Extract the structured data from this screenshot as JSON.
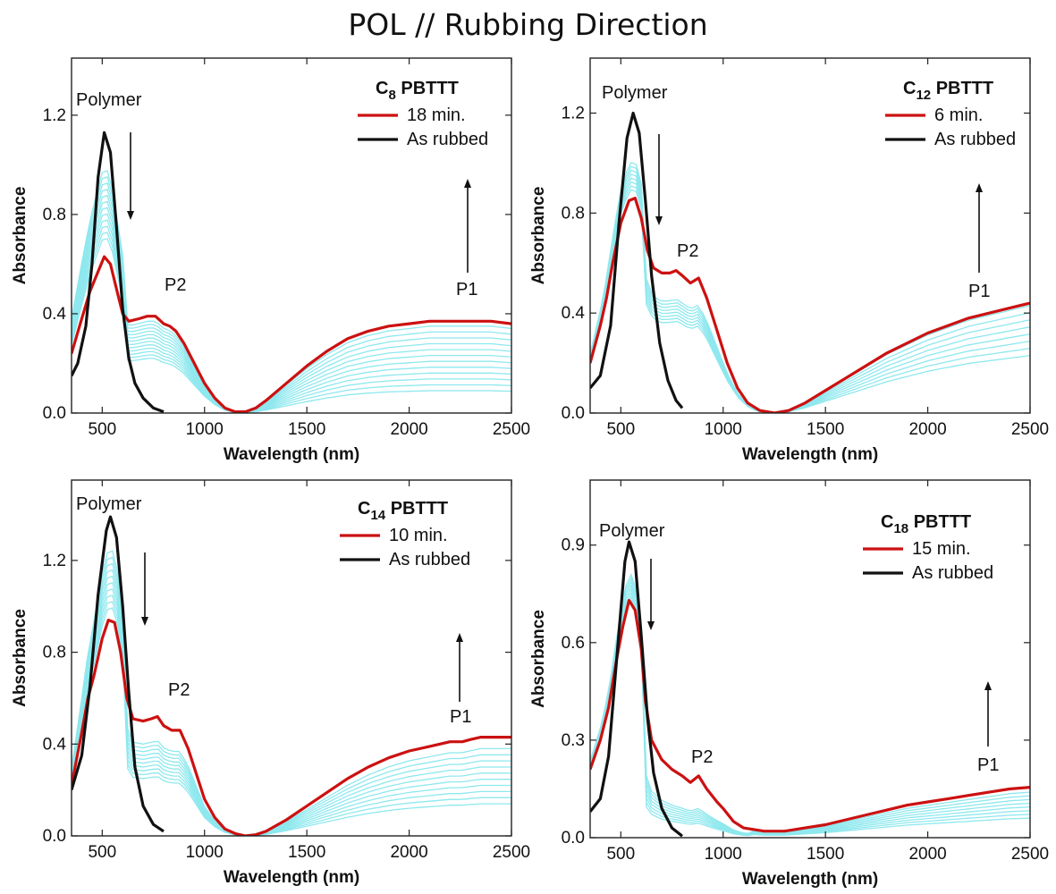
{
  "title": "POL // Rubbing Direction",
  "colors": {
    "treated": "#cc1111",
    "rubbed": "#111111",
    "intermediate": "#8ee8ee",
    "frame": "#222222"
  },
  "chart_data": [
    {
      "type": "line",
      "legend_title_main": "C",
      "legend_title_sub": "8",
      "legend_title_rest": " PBTTT",
      "xlabel": "Wavelength (nm)",
      "ylabel": "Absorbance",
      "xlim": [
        350,
        2500
      ],
      "ylim": [
        0,
        1.43
      ],
      "xticks": [
        500,
        1000,
        1500,
        2000,
        2500
      ],
      "yticks": [
        0.0,
        0.4,
        0.8,
        1.2
      ],
      "ytick_labels": [
        "0.0",
        "0.4",
        "0.8",
        "1.2"
      ],
      "annotations": {
        "polymer": "Polymer",
        "p2": "P2",
        "p1": "P1"
      },
      "legend_position": "top-right",
      "series": [
        {
          "name": "18  min.",
          "role": "treated",
          "points": [
            [
              350,
              0.24
            ],
            [
              400,
              0.38
            ],
            [
              440,
              0.49
            ],
            [
              480,
              0.57
            ],
            [
              510,
              0.63
            ],
            [
              540,
              0.6
            ],
            [
              570,
              0.5
            ],
            [
              600,
              0.4
            ],
            [
              630,
              0.37
            ],
            [
              680,
              0.38
            ],
            [
              720,
              0.39
            ],
            [
              760,
              0.39
            ],
            [
              800,
              0.36
            ],
            [
              830,
              0.35
            ],
            [
              860,
              0.33
            ],
            [
              900,
              0.28
            ],
            [
              950,
              0.2
            ],
            [
              1000,
              0.12
            ],
            [
              1050,
              0.06
            ],
            [
              1100,
              0.02
            ],
            [
              1150,
              0.005
            ],
            [
              1200,
              0.005
            ],
            [
              1250,
              0.02
            ],
            [
              1300,
              0.05
            ],
            [
              1400,
              0.12
            ],
            [
              1500,
              0.19
            ],
            [
              1600,
              0.25
            ],
            [
              1700,
              0.3
            ],
            [
              1800,
              0.33
            ],
            [
              1900,
              0.35
            ],
            [
              2000,
              0.36
            ],
            [
              2100,
              0.37
            ],
            [
              2200,
              0.37
            ],
            [
              2300,
              0.37
            ],
            [
              2400,
              0.37
            ],
            [
              2500,
              0.36
            ]
          ]
        },
        {
          "name": "As rubbed",
          "role": "rubbed",
          "points": [
            [
              350,
              0.15
            ],
            [
              380,
              0.2
            ],
            [
              420,
              0.35
            ],
            [
              450,
              0.6
            ],
            [
              480,
              0.95
            ],
            [
              510,
              1.13
            ],
            [
              540,
              1.05
            ],
            [
              570,
              0.75
            ],
            [
              600,
              0.42
            ],
            [
              630,
              0.22
            ],
            [
              660,
              0.12
            ],
            [
              700,
              0.06
            ],
            [
              750,
              0.02
            ],
            [
              800,
              0.005
            ]
          ]
        }
      ],
      "intermediate": {
        "count": 12,
        "peak": [
          0.72,
          1.0
        ],
        "p2": [
          0.22,
          0.37
        ],
        "p1": [
          0.09,
          0.35
        ]
      }
    },
    {
      "type": "line",
      "legend_title_main": "C",
      "legend_title_sub": "12",
      "legend_title_rest": " PBTTT",
      "xlabel": "Wavelength (nm)",
      "ylabel": "Absorbance",
      "xlim": [
        350,
        2500
      ],
      "ylim": [
        0,
        1.42
      ],
      "xticks": [
        500,
        1000,
        1500,
        2000,
        2500
      ],
      "yticks": [
        0.0,
        0.4,
        0.8,
        1.2
      ],
      "ytick_labels": [
        "0.0",
        "0.4",
        "0.8",
        "1.2"
      ],
      "annotations": {
        "polymer": "Polymer",
        "p2": "P2",
        "p1": "P1"
      },
      "legend_position": "top-right",
      "series": [
        {
          "name": "6   min.",
          "role": "treated",
          "points": [
            [
              350,
              0.2
            ],
            [
              400,
              0.35
            ],
            [
              430,
              0.46
            ],
            [
              460,
              0.6
            ],
            [
              500,
              0.76
            ],
            [
              540,
              0.85
            ],
            [
              570,
              0.86
            ],
            [
              600,
              0.78
            ],
            [
              630,
              0.65
            ],
            [
              660,
              0.58
            ],
            [
              700,
              0.56
            ],
            [
              740,
              0.56
            ],
            [
              770,
              0.57
            ],
            [
              800,
              0.55
            ],
            [
              840,
              0.52
            ],
            [
              880,
              0.54
            ],
            [
              920,
              0.46
            ],
            [
              970,
              0.33
            ],
            [
              1020,
              0.2
            ],
            [
              1070,
              0.1
            ],
            [
              1120,
              0.04
            ],
            [
              1180,
              0.01
            ],
            [
              1250,
              0.0
            ],
            [
              1320,
              0.01
            ],
            [
              1400,
              0.04
            ],
            [
              1500,
              0.09
            ],
            [
              1600,
              0.14
            ],
            [
              1700,
              0.19
            ],
            [
              1800,
              0.24
            ],
            [
              1900,
              0.28
            ],
            [
              2000,
              0.32
            ],
            [
              2100,
              0.35
            ],
            [
              2200,
              0.38
            ],
            [
              2300,
              0.4
            ],
            [
              2400,
              0.42
            ],
            [
              2500,
              0.44
            ]
          ]
        },
        {
          "name": "As rubbed",
          "role": "rubbed",
          "points": [
            [
              350,
              0.1
            ],
            [
              400,
              0.15
            ],
            [
              450,
              0.35
            ],
            [
              490,
              0.75
            ],
            [
              530,
              1.1
            ],
            [
              560,
              1.2
            ],
            [
              590,
              1.12
            ],
            [
              620,
              0.85
            ],
            [
              650,
              0.55
            ],
            [
              690,
              0.28
            ],
            [
              730,
              0.13
            ],
            [
              770,
              0.05
            ],
            [
              800,
              0.02
            ]
          ]
        }
      ],
      "intermediate": {
        "count": 8,
        "peak": [
          0.9,
          1.01
        ],
        "p2": [
          0.42,
          0.52
        ],
        "p1": [
          0.23,
          0.43
        ]
      }
    },
    {
      "type": "line",
      "legend_title_main": "C",
      "legend_title_sub": "14",
      "legend_title_rest": " PBTTT",
      "xlabel": "Wavelength (nm)",
      "ylabel": "Absorbance",
      "xlim": [
        350,
        2500
      ],
      "ylim": [
        0,
        1.55
      ],
      "xticks": [
        500,
        1000,
        1500,
        2000,
        2500
      ],
      "yticks": [
        0.0,
        0.4,
        0.8,
        1.2
      ],
      "ytick_labels": [
        "0.0",
        "0.4",
        "0.8",
        "1.2"
      ],
      "annotations": {
        "polymer": "Polymer",
        "p2": "P2",
        "p1": "P1"
      },
      "legend_position": "top-right",
      "series": [
        {
          "name": "10   min.",
          "role": "treated",
          "points": [
            [
              350,
              0.22
            ],
            [
              400,
              0.45
            ],
            [
              430,
              0.6
            ],
            [
              460,
              0.7
            ],
            [
              500,
              0.86
            ],
            [
              530,
              0.94
            ],
            [
              560,
              0.93
            ],
            [
              590,
              0.8
            ],
            [
              620,
              0.6
            ],
            [
              650,
              0.51
            ],
            [
              700,
              0.5
            ],
            [
              740,
              0.51
            ],
            [
              770,
              0.52
            ],
            [
              800,
              0.48
            ],
            [
              840,
              0.46
            ],
            [
              880,
              0.46
            ],
            [
              920,
              0.38
            ],
            [
              960,
              0.27
            ],
            [
              1000,
              0.16
            ],
            [
              1050,
              0.08
            ],
            [
              1100,
              0.03
            ],
            [
              1150,
              0.01
            ],
            [
              1200,
              0.0
            ],
            [
              1250,
              0.005
            ],
            [
              1300,
              0.02
            ],
            [
              1400,
              0.07
            ],
            [
              1500,
              0.13
            ],
            [
              1600,
              0.19
            ],
            [
              1700,
              0.25
            ],
            [
              1800,
              0.3
            ],
            [
              1900,
              0.34
            ],
            [
              2000,
              0.37
            ],
            [
              2100,
              0.39
            ],
            [
              2200,
              0.41
            ],
            [
              2260,
              0.41
            ],
            [
              2300,
              0.42
            ],
            [
              2350,
              0.43
            ],
            [
              2400,
              0.43
            ],
            [
              2500,
              0.43
            ]
          ]
        },
        {
          "name": "As rubbed",
          "role": "rubbed",
          "points": [
            [
              350,
              0.2
            ],
            [
              400,
              0.35
            ],
            [
              440,
              0.65
            ],
            [
              480,
              1.05
            ],
            [
              520,
              1.33
            ],
            [
              540,
              1.39
            ],
            [
              570,
              1.3
            ],
            [
              600,
              1.0
            ],
            [
              630,
              0.62
            ],
            [
              660,
              0.3
            ],
            [
              700,
              0.13
            ],
            [
              750,
              0.05
            ],
            [
              800,
              0.02
            ]
          ]
        }
      ],
      "intermediate": {
        "count": 10,
        "peak": [
          1.0,
          1.25
        ],
        "p2": [
          0.3,
          0.48
        ],
        "p1": [
          0.14,
          0.38
        ]
      }
    },
    {
      "type": "line",
      "legend_title_main": "C",
      "legend_title_sub": "18",
      "legend_title_rest": " PBTTT",
      "xlabel": "Wavelength (nm)",
      "ylabel": "Absorbance",
      "xlim": [
        350,
        2500
      ],
      "ylim": [
        0,
        1.1
      ],
      "xticks": [
        500,
        1000,
        1500,
        2000,
        2500
      ],
      "yticks": [
        0.0,
        0.3,
        0.6,
        0.9
      ],
      "ytick_labels": [
        "0.0",
        "0.3",
        "0.6",
        "0.9"
      ],
      "annotations": {
        "polymer": "Polymer",
        "p2": "P2",
        "p1": "P1"
      },
      "legend_position": "top-right",
      "series": [
        {
          "name": "15  min.",
          "role": "treated",
          "points": [
            [
              350,
              0.21
            ],
            [
              400,
              0.3
            ],
            [
              440,
              0.4
            ],
            [
              480,
              0.55
            ],
            [
              510,
              0.65
            ],
            [
              540,
              0.73
            ],
            [
              570,
              0.7
            ],
            [
              600,
              0.58
            ],
            [
              620,
              0.42
            ],
            [
              650,
              0.3
            ],
            [
              700,
              0.24
            ],
            [
              750,
              0.21
            ],
            [
              800,
              0.19
            ],
            [
              840,
              0.17
            ],
            [
              880,
              0.19
            ],
            [
              920,
              0.15
            ],
            [
              970,
              0.11
            ],
            [
              1000,
              0.09
            ],
            [
              1050,
              0.05
            ],
            [
              1100,
              0.03
            ],
            [
              1200,
              0.02
            ],
            [
              1300,
              0.02
            ],
            [
              1400,
              0.03
            ],
            [
              1500,
              0.04
            ],
            [
              1600,
              0.055
            ],
            [
              1700,
              0.07
            ],
            [
              1800,
              0.085
            ],
            [
              1900,
              0.1
            ],
            [
              2000,
              0.11
            ],
            [
              2100,
              0.12
            ],
            [
              2200,
              0.13
            ],
            [
              2300,
              0.14
            ],
            [
              2400,
              0.15
            ],
            [
              2500,
              0.155
            ]
          ]
        },
        {
          "name": "As rubbed",
          "role": "rubbed",
          "points": [
            [
              350,
              0.08
            ],
            [
              400,
              0.12
            ],
            [
              440,
              0.25
            ],
            [
              480,
              0.55
            ],
            [
              520,
              0.85
            ],
            [
              540,
              0.91
            ],
            [
              570,
              0.85
            ],
            [
              600,
              0.62
            ],
            [
              630,
              0.37
            ],
            [
              660,
              0.2
            ],
            [
              700,
              0.09
            ],
            [
              750,
              0.03
            ],
            [
              800,
              0.005
            ]
          ]
        }
      ],
      "intermediate": {
        "count": 8,
        "peak": [
          0.74,
          0.82
        ],
        "p2": [
          0.1,
          0.2
        ],
        "p1": [
          0.06,
          0.14
        ]
      }
    }
  ]
}
